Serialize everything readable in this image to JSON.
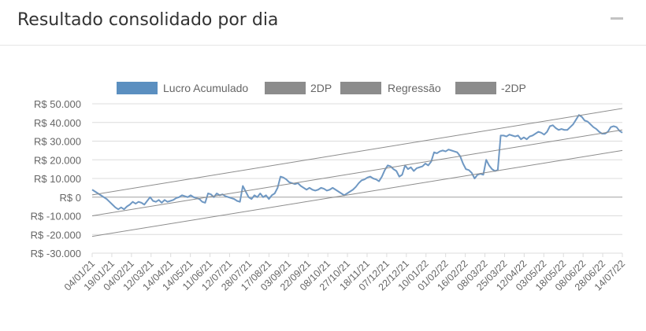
{
  "panel": {
    "title": "Resultado consolidado por dia",
    "collapse_icon": "minus-icon"
  },
  "colors": {
    "series": "#6f98c3",
    "legend_series": "#5b8fc0",
    "bands": "#8c8c8c",
    "grid": "#dcdcdc",
    "zero": "#a0a0a0",
    "text": "#666666"
  },
  "chart_data": {
    "type": "line",
    "title": "",
    "xlabel": "",
    "ylabel": "",
    "ylim": [
      -30000,
      50000
    ],
    "y_ticks": [
      50000,
      40000,
      30000,
      20000,
      10000,
      0,
      -10000,
      -20000,
      -30000
    ],
    "y_tick_labels": [
      "R$ 50.000",
      "R$ 40.000",
      "R$ 30.000",
      "R$ 20.000",
      "R$ 10.000",
      "R$ 0",
      "R$ -10.000",
      "R$ -20.000",
      "R$ -30.000"
    ],
    "x_tick_labels": [
      "04/01/21",
      "19/01/21",
      "04/02/21",
      "12/03/21",
      "14/04/21",
      "14/05/21",
      "11/06/21",
      "12/07/21",
      "28/07/21",
      "17/08/21",
      "03/09/21",
      "22/09/21",
      "08/10/21",
      "27/10/21",
      "18/11/21",
      "07/12/21",
      "22/12/21",
      "10/01/22",
      "01/02/22",
      "16/02/22",
      "08/03/22",
      "25/03/22",
      "12/04/22",
      "03/05/22",
      "18/05/22",
      "08/06/22",
      "28/06/22",
      "14/07/22"
    ],
    "grid": true,
    "legend_position": "top",
    "series": [
      {
        "name": "Lucro Acumulado",
        "kind": "line",
        "color": "#6f98c3",
        "values": [
          4000,
          3000,
          2000,
          1000,
          0,
          -1000,
          -2500,
          -4000,
          -5500,
          -6500,
          -5500,
          -6500,
          -5000,
          -4000,
          -2500,
          -3500,
          -2500,
          -3000,
          -4000,
          -2000,
          0,
          -2000,
          -2500,
          -1500,
          -3000,
          -1500,
          -2500,
          -2000,
          -1500,
          -500,
          0,
          1000,
          500,
          0,
          1000,
          0,
          -500,
          -1000,
          -2500,
          -3000,
          2000,
          1500,
          0,
          2000,
          1000,
          1500,
          500,
          0,
          -500,
          -1000,
          -2000,
          -2500,
          6000,
          3000,
          0,
          -1000,
          1000,
          0,
          2000,
          0,
          1000,
          -1000,
          1000,
          2000,
          5000,
          11000,
          10500,
          9500,
          8000,
          7500,
          7000,
          7500,
          6000,
          5000,
          4000,
          5000,
          4000,
          3500,
          4000,
          5000,
          4500,
          3500,
          4000,
          5000,
          4000,
          3000,
          2000,
          1000,
          2000,
          3000,
          4000,
          5500,
          7500,
          9000,
          9500,
          10500,
          11000,
          10000,
          9500,
          8500,
          11000,
          14500,
          17000,
          16500,
          15000,
          14000,
          11000,
          12000,
          17000,
          15000,
          16000,
          14000,
          15500,
          16000,
          16500,
          18000,
          17000,
          19000,
          24000,
          23500,
          24500,
          25000,
          24500,
          25500,
          25000,
          24500,
          24000,
          22000,
          18000,
          15000,
          14500,
          13000,
          10000,
          12000,
          12500,
          12000,
          20000,
          17000,
          15000,
          14000,
          14500,
          33000,
          33000,
          32500,
          33500,
          33000,
          32500,
          33000,
          31000,
          32000,
          31000,
          32500,
          33000,
          34000,
          35000,
          34500,
          33500,
          35000,
          38000,
          38500,
          37000,
          36000,
          36500,
          36000,
          36000,
          37500,
          39000,
          41500,
          44000,
          43000,
          41000,
          40500,
          39000,
          37500,
          36500,
          35000,
          34000,
          34000,
          35000,
          37500,
          38000,
          37500,
          35500,
          34500
        ]
      },
      {
        "name": "2DP",
        "kind": "band",
        "color": "#8c8c8c",
        "start": 1200,
        "end": 47500
      },
      {
        "name": "Regressão",
        "kind": "band",
        "color": "#8c8c8c",
        "start": -10000,
        "end": 36000
      },
      {
        "name": "-2DP",
        "kind": "band",
        "color": "#8c8c8c",
        "start": -21000,
        "end": 25000
      }
    ]
  }
}
